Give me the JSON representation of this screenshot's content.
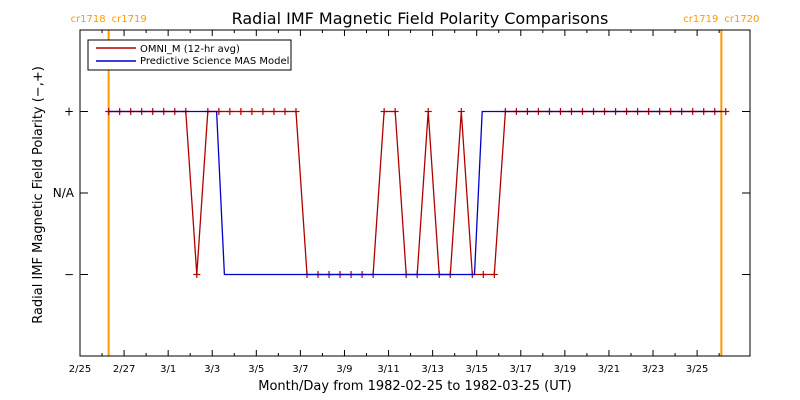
{
  "chart_data": {
    "type": "line",
    "title": "Radial IMF Magnetic Field Polarity Comparisons",
    "xlabel": "Month/Day from 1982-02-25 to 1982-03-25 (UT)",
    "ylabel": "Radial IMF Magnetic Field Polarity (−,+)",
    "x_tick_labels": [
      "2/25",
      "2/27",
      "3/1",
      "3/3",
      "3/5",
      "3/7",
      "3/9",
      "3/11",
      "3/13",
      "3/15",
      "3/17",
      "3/19",
      "3/21",
      "3/23",
      "3/25"
    ],
    "x_tick_days": [
      0,
      2,
      4,
      6,
      8,
      10,
      12,
      14,
      16,
      18,
      20,
      22,
      24,
      26,
      28
    ],
    "xlim": [
      0,
      30.4
    ],
    "y_levels": [
      {
        "value": 1,
        "label": "+"
      },
      {
        "value": 0,
        "label": "N/A"
      },
      {
        "value": -1,
        "label": "−"
      }
    ],
    "ylim": [
      -2,
      2
    ],
    "carrington_markers": [
      {
        "day": 1.3,
        "label_left": "cr1718",
        "label_right": "cr1719"
      },
      {
        "day": 29.1,
        "label_left": "cr1719",
        "label_right": "cr1720"
      }
    ],
    "legend": {
      "position": "top-left"
    },
    "colors": {
      "omni": "#b00000",
      "model": "#0000cc",
      "carrington": "#ff9900",
      "axes": "#000000"
    },
    "series": [
      {
        "name": "OMNI_M (12-hr avg)",
        "marker": "plus",
        "x": [
          1.3,
          1.8,
          2.3,
          2.8,
          3.3,
          3.8,
          4.3,
          4.8,
          5.3,
          5.8,
          6.3,
          6.8,
          7.3,
          7.8,
          8.3,
          8.8,
          9.3,
          9.8,
          10.3,
          10.8,
          11.3,
          11.8,
          12.3,
          12.8,
          13.3,
          13.8,
          14.3,
          14.8,
          15.3,
          15.8,
          16.3,
          16.8,
          17.3,
          17.8,
          18.3,
          18.8,
          19.3,
          19.8,
          20.3,
          20.8,
          21.3,
          21.8,
          22.3,
          22.8,
          23.3,
          23.8,
          24.3,
          24.8,
          25.3,
          25.8,
          26.3,
          26.8,
          27.3,
          27.8,
          28.3,
          28.8,
          29.3
        ],
        "values": [
          1,
          1,
          1,
          1,
          1,
          1,
          1,
          1,
          -1,
          1,
          1,
          1,
          1,
          1,
          1,
          1,
          1,
          1,
          -1,
          -1,
          -1,
          -1,
          -1,
          -1,
          -1,
          1,
          1,
          -1,
          -1,
          1,
          -1,
          -1,
          1,
          -1,
          -1,
          -1,
          1,
          1,
          1,
          1,
          1,
          1,
          1,
          1,
          1,
          1,
          1,
          1,
          1,
          1,
          1,
          1,
          1,
          1,
          1,
          1,
          1
        ]
      },
      {
        "name": "Predictive Science MAS Model",
        "marker": "none",
        "x": [
          1.3,
          6.2,
          6.55,
          17.9,
          18.25,
          29.1
        ],
        "values": [
          1,
          1,
          -1,
          -1,
          1,
          1
        ]
      }
    ]
  }
}
